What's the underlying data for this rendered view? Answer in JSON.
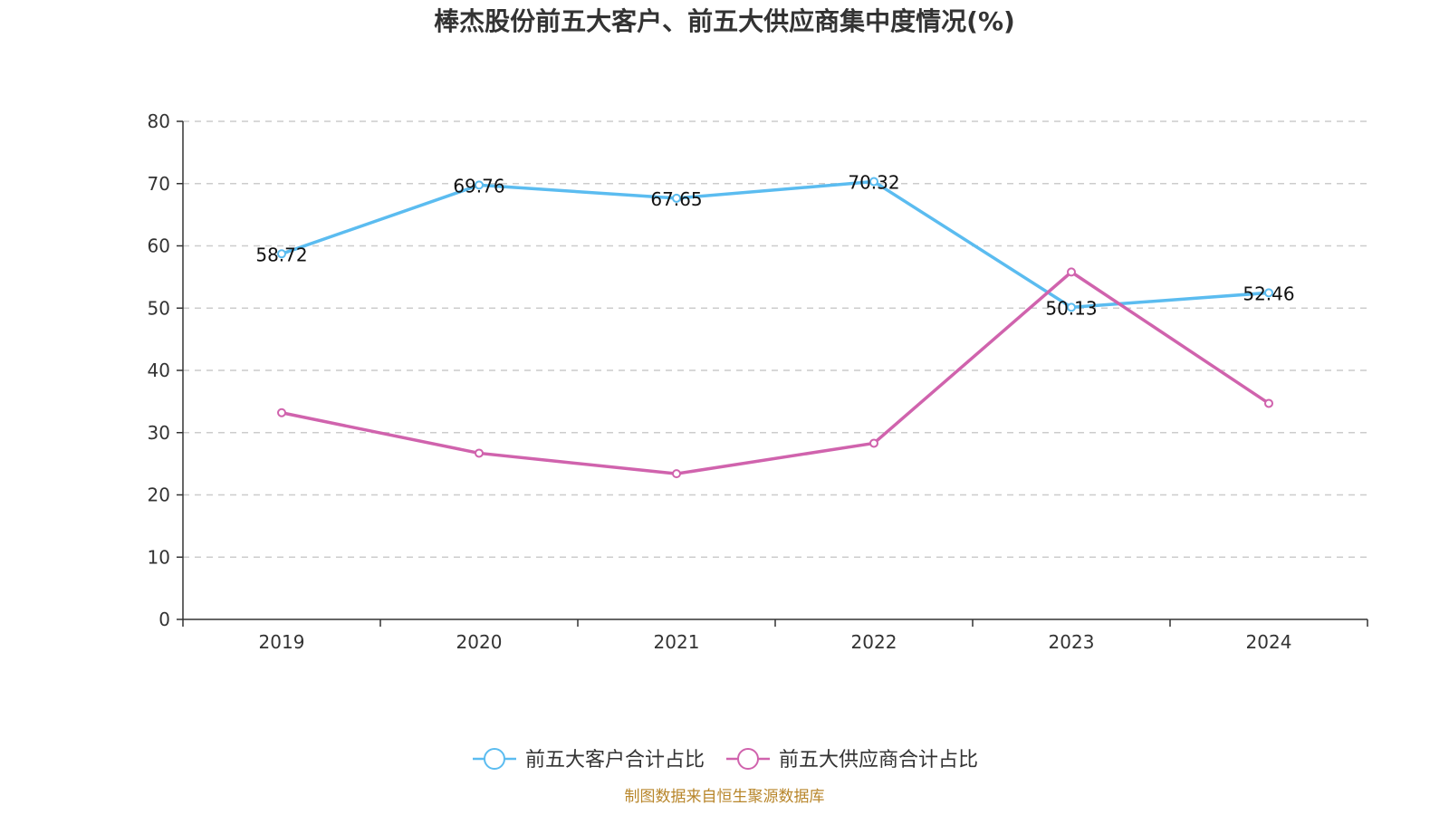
{
  "chart_data": {
    "type": "line",
    "title": "棒杰股份前五大客户、前五大供应商集中度情况(%)",
    "categories": [
      "2019",
      "2020",
      "2021",
      "2022",
      "2023",
      "2024"
    ],
    "ylim": [
      0,
      80
    ],
    "yticks": [
      "0",
      "10",
      "20",
      "30",
      "40",
      "50",
      "60",
      "70",
      "80"
    ],
    "grid": true,
    "legend_position": "bottom",
    "series": [
      {
        "name": "前五大客户合计占比",
        "color": "#5bbcf0",
        "values": [
          58.72,
          69.76,
          67.65,
          70.32,
          50.13,
          52.46
        ],
        "labels": [
          "58.72",
          "69.76",
          "67.65",
          "70.32",
          "50.13",
          "52.46"
        ]
      },
      {
        "name": "前五大供应商合计占比",
        "color": "#d063ad",
        "values": [
          33.2,
          26.7,
          23.4,
          28.3,
          55.8,
          34.7
        ]
      }
    ],
    "source": "制图数据来自恒生聚源数据库"
  }
}
